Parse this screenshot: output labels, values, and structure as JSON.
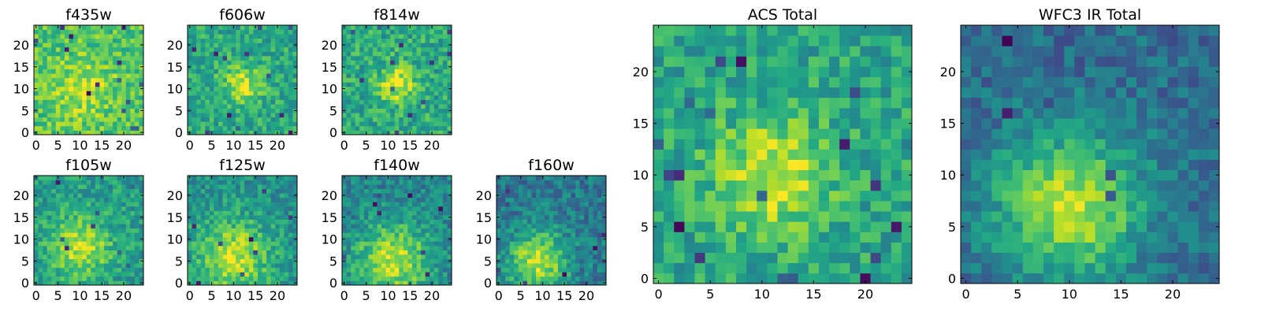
{
  "chart_data": {
    "type": "heatmap",
    "colormap": "viridis",
    "grid": false,
    "panels": [
      {
        "title": "f435w",
        "xlim": [
          0,
          24
        ],
        "ylim": [
          0,
          24
        ],
        "xticks": [
          0,
          5,
          10,
          15,
          20
        ],
        "yticks": [
          0,
          5,
          10,
          15,
          20
        ],
        "center": [
          11,
          10
        ],
        "sigma": 5,
        "peak": 0.18,
        "base": 0.72,
        "noise": 0.16,
        "dark_pixels": 14,
        "seed": 1
      },
      {
        "title": "f606w",
        "xlim": [
          0,
          24
        ],
        "ylim": [
          0,
          24
        ],
        "xticks": [
          0,
          5,
          10,
          15,
          20
        ],
        "yticks": [
          0,
          5,
          10,
          15,
          20
        ],
        "center": [
          12,
          11
        ],
        "sigma": 3,
        "peak": 0.35,
        "base": 0.6,
        "noise": 0.16,
        "dark_pixels": 12,
        "seed": 2
      },
      {
        "title": "f814w",
        "xlim": [
          0,
          24
        ],
        "ylim": [
          0,
          24
        ],
        "xticks": [
          0,
          5,
          10,
          15,
          20
        ],
        "yticks": [
          0,
          5,
          10,
          15,
          20
        ],
        "center": [
          12,
          11
        ],
        "sigma": 3,
        "peak": 0.35,
        "base": 0.6,
        "noise": 0.17,
        "dark_pixels": 12,
        "seed": 3
      },
      {
        "title": "f105w",
        "xlim": [
          0,
          24
        ],
        "ylim": [
          0,
          24
        ],
        "xticks": [
          0,
          5,
          10,
          15,
          20
        ],
        "yticks": [
          0,
          5,
          10,
          15,
          20
        ],
        "center": [
          10,
          8
        ],
        "sigma": 5,
        "peak": 0.35,
        "base": 0.55,
        "noise": 0.15,
        "dark_pixels": 8,
        "seed": 4
      },
      {
        "title": "f125w",
        "xlim": [
          0,
          24
        ],
        "ylim": [
          0,
          24
        ],
        "xticks": [
          0,
          5,
          10,
          15,
          20
        ],
        "yticks": [
          0,
          5,
          10,
          15,
          20
        ],
        "center": [
          10,
          6
        ],
        "sigma": 6,
        "peak": 0.4,
        "base": 0.5,
        "noise": 0.15,
        "dark_pixels": 8,
        "seed": 5
      },
      {
        "title": "f140w",
        "xlim": [
          0,
          24
        ],
        "ylim": [
          0,
          24
        ],
        "xticks": [
          0,
          5,
          10,
          15,
          20
        ],
        "yticks": [
          0,
          5,
          10,
          15,
          20
        ],
        "center": [
          11,
          5
        ],
        "sigma": 6,
        "peak": 0.45,
        "base": 0.45,
        "noise": 0.15,
        "dark_pixels": 8,
        "seed": 6
      },
      {
        "title": "f160w",
        "xlim": [
          0,
          24
        ],
        "ylim": [
          0,
          24
        ],
        "xticks": [
          0,
          5,
          10,
          15,
          20
        ],
        "yticks": [
          0,
          5,
          10,
          15,
          20
        ],
        "center": [
          9,
          5
        ],
        "sigma": 5,
        "peak": 0.5,
        "base": 0.4,
        "noise": 0.15,
        "dark_pixels": 10,
        "seed": 7
      },
      {
        "title": "ACS Total",
        "xlim": [
          0,
          24
        ],
        "ylim": [
          0,
          24
        ],
        "xticks": [
          0,
          5,
          10,
          15,
          20
        ],
        "yticks": [
          0,
          5,
          10,
          15,
          20
        ],
        "center": [
          11,
          10
        ],
        "sigma": 4,
        "peak": 0.35,
        "base": 0.58,
        "noise": 0.16,
        "dark_pixels": 18,
        "seed": 8
      },
      {
        "title": "WFC3 IR Total",
        "xlim": [
          0,
          24
        ],
        "ylim": [
          0,
          24
        ],
        "xticks": [
          0,
          5,
          10,
          15,
          20
        ],
        "yticks": [
          0,
          5,
          10,
          15,
          20
        ],
        "center": [
          10,
          7
        ],
        "sigma": 5,
        "peak": 0.55,
        "base": 0.35,
        "noise": 0.13,
        "dark_pixels": 12,
        "seed": 9
      }
    ]
  }
}
